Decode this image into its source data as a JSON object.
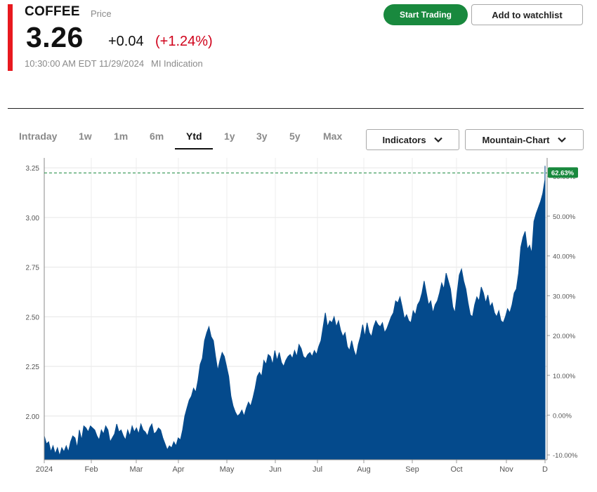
{
  "quote": {
    "symbol": "COFFEE",
    "price_label": "Price",
    "last": "3.26",
    "change": "+0.04",
    "change_pct": "(+1.24%)",
    "timestamp": "10:30:00 AM EDT 11/29/2024",
    "source": "MI Indication"
  },
  "actions": {
    "trade_label": "Start Trading",
    "watchlist_label": "Add to watchlist"
  },
  "ranges": [
    "Intraday",
    "1w",
    "1m",
    "6m",
    "Ytd",
    "1y",
    "3y",
    "5y",
    "Max"
  ],
  "active_range": "Ytd",
  "controls": {
    "indicators_label": "Indicators",
    "chart_type_label": "Mountain-Chart"
  },
  "colors": {
    "accent": "#e8191f",
    "trade_green": "#19893e",
    "negative": "#d0021b",
    "area_fill": "#044a8c",
    "last_badge": "#19893e"
  },
  "chart_data": {
    "type": "area",
    "y_ticks": [
      "3.25",
      "3.00",
      "2.75",
      "2.50",
      "2.25",
      "2.00"
    ],
    "y_right_ticks": [
      "60.00%",
      "50.00%",
      "40.00%",
      "30.00%",
      "20.00%",
      "10.00%",
      "0.00%",
      "-10.00%"
    ],
    "x_ticks": [
      "2024",
      "Feb",
      "Mar",
      "Apr",
      "May",
      "Jun",
      "Jul",
      "Aug",
      "Sep",
      "Oct",
      "Nov",
      "D"
    ],
    "ylim": [
      1.78,
      3.3
    ],
    "last_value": 3.26,
    "last_label": "62.63%",
    "grid": true,
    "series": [
      {
        "values": [
          1.9,
          1.86,
          1.87,
          1.82,
          1.85,
          1.81,
          1.84,
          1.8,
          1.84,
          1.82,
          1.85,
          1.82,
          1.87,
          1.9,
          1.89,
          1.84,
          1.93,
          1.88,
          1.95,
          1.94,
          1.92,
          1.95,
          1.94,
          1.93,
          1.9,
          1.88,
          1.93,
          1.91,
          1.95,
          1.93,
          1.87,
          1.89,
          1.91,
          1.96,
          1.92,
          1.93,
          1.9,
          1.88,
          1.93,
          1.9,
          1.95,
          1.92,
          1.94,
          1.91,
          1.96,
          1.93,
          1.92,
          1.9,
          1.94,
          1.96,
          1.91,
          1.92,
          1.94,
          1.93,
          1.89,
          1.86,
          1.83,
          1.85,
          1.84,
          1.87,
          1.85,
          1.89,
          1.88,
          1.93,
          2.0,
          2.04,
          2.08,
          2.1,
          2.14,
          2.12,
          2.18,
          2.26,
          2.29,
          2.38,
          2.42,
          2.45,
          2.4,
          2.38,
          2.3,
          2.23,
          2.28,
          2.32,
          2.3,
          2.25,
          2.2,
          2.1,
          2.05,
          2.02,
          2.0,
          2.01,
          2.03,
          2.0,
          2.04,
          2.07,
          2.05,
          2.09,
          2.14,
          2.2,
          2.22,
          2.2,
          2.28,
          2.26,
          2.31,
          2.3,
          2.26,
          2.33,
          2.28,
          2.32,
          2.27,
          2.25,
          2.28,
          2.3,
          2.31,
          2.29,
          2.33,
          2.3,
          2.36,
          2.34,
          2.3,
          2.29,
          2.31,
          2.32,
          2.3,
          2.33,
          2.31,
          2.35,
          2.38,
          2.45,
          2.52,
          2.45,
          2.48,
          2.47,
          2.5,
          2.45,
          2.48,
          2.43,
          2.4,
          2.42,
          2.35,
          2.33,
          2.38,
          2.33,
          2.3,
          2.36,
          2.4,
          2.46,
          2.4,
          2.47,
          2.42,
          2.4,
          2.45,
          2.48,
          2.46,
          2.45,
          2.47,
          2.42,
          2.44,
          2.47,
          2.5,
          2.52,
          2.58,
          2.57,
          2.6,
          2.55,
          2.49,
          2.51,
          2.48,
          2.47,
          2.53,
          2.51,
          2.56,
          2.58,
          2.62,
          2.68,
          2.62,
          2.56,
          2.58,
          2.52,
          2.56,
          2.58,
          2.62,
          2.67,
          2.64,
          2.72,
          2.68,
          2.64,
          2.55,
          2.52,
          2.62,
          2.71,
          2.74,
          2.68,
          2.64,
          2.57,
          2.51,
          2.5,
          2.56,
          2.6,
          2.58,
          2.65,
          2.62,
          2.57,
          2.61,
          2.55,
          2.57,
          2.52,
          2.5,
          2.53,
          2.48,
          2.47,
          2.5,
          2.54,
          2.52,
          2.56,
          2.62,
          2.64,
          2.72,
          2.85,
          2.9,
          2.93,
          2.84,
          2.86,
          2.82,
          2.98,
          3.02,
          3.05,
          3.08,
          3.12,
          3.19,
          3.26
        ]
      }
    ]
  }
}
